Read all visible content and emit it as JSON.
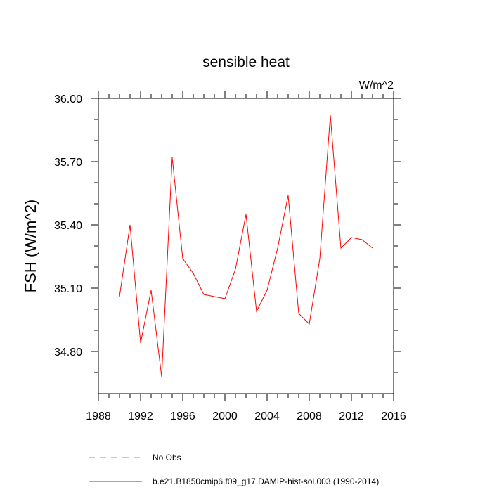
{
  "chart_data": {
    "type": "line",
    "title": "sensible heat",
    "units_label": "W/m^2",
    "ylabel": "FSH  (W/m^2)",
    "xlabel": "",
    "xlim": [
      1988,
      2016
    ],
    "ylim": [
      34.6,
      36.0
    ],
    "xticks": [
      1988,
      1992,
      1996,
      2000,
      2004,
      2008,
      2012,
      2016
    ],
    "xtick_labels": [
      "1988",
      "1992",
      "1996",
      "2000",
      "2004",
      "2008",
      "2012",
      "2016"
    ],
    "yticks": [
      34.8,
      35.1,
      35.4,
      35.7,
      36.0
    ],
    "ytick_labels": [
      "34.80",
      "35.10",
      "35.40",
      "35.70",
      "36.00"
    ],
    "grid": false,
    "legend_position": "bottom",
    "series": [
      {
        "name": "No Obs",
        "color": "#8080ff",
        "dash": true,
        "x": [],
        "y": []
      },
      {
        "name": "b.e21.B1850cmip6.f09_g17.DAMIP-hist-sol.003 (1990-2014)",
        "color": "#ff0000",
        "dash": false,
        "x": [
          1990,
          1991,
          1992,
          1993,
          1994,
          1995,
          1996,
          1997,
          1998,
          1999,
          2000,
          2001,
          2002,
          2003,
          2004,
          2005,
          2006,
          2007,
          2008,
          2009,
          2010,
          2011,
          2012,
          2013,
          2014
        ],
        "y": [
          35.06,
          35.4,
          34.84,
          35.09,
          34.68,
          35.72,
          35.24,
          35.17,
          35.07,
          35.06,
          35.05,
          35.19,
          35.45,
          34.99,
          35.09,
          35.29,
          35.54,
          34.98,
          34.93,
          35.24,
          35.92,
          35.29,
          35.34,
          35.33,
          35.29
        ]
      }
    ]
  }
}
